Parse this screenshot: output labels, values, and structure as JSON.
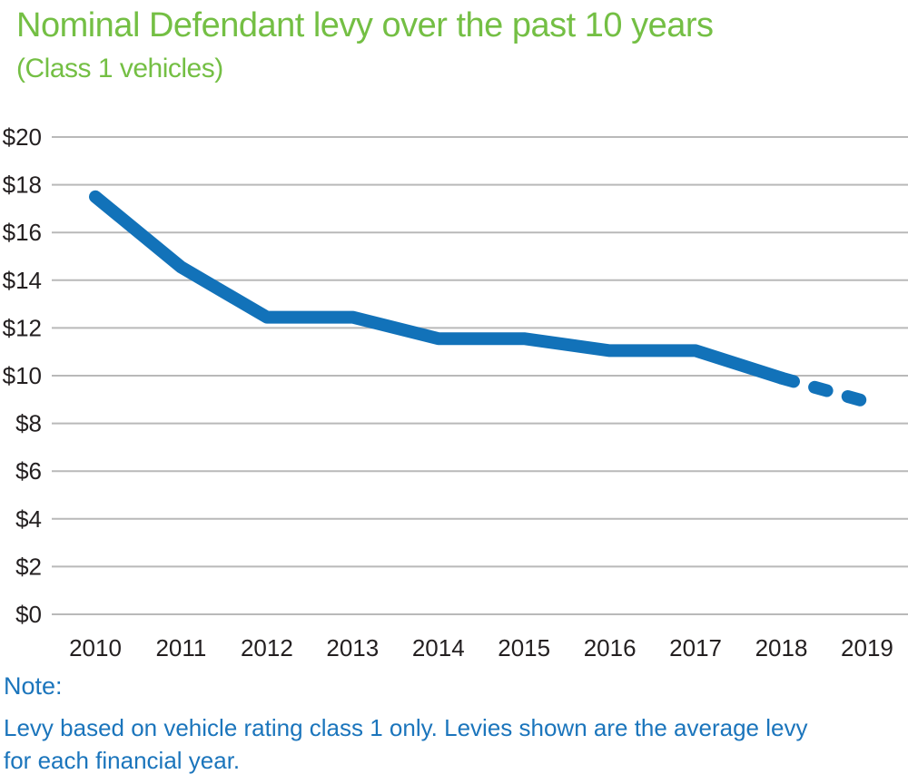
{
  "header": {
    "title": "Nominal Defendant levy over the past 10 years",
    "subtitle": "(Class 1 vehicles)"
  },
  "note": {
    "heading": "Note:",
    "line1": "Levy based on vehicle rating class 1 only. Levies shown are the average levy",
    "line2": "for each financial year."
  },
  "colors": {
    "title_green": "#74bf44",
    "line_blue": "#1272b9",
    "note_blue": "#1b75bc",
    "grid_gray": "#b9b9b9",
    "axis_text": "#231f20"
  },
  "chart_data": {
    "type": "line",
    "title": "Nominal Defendant levy over the past 10 years",
    "subtitle": "(Class 1 vehicles)",
    "xlabel": "",
    "ylabel": "",
    "x": [
      2010,
      2011,
      2012,
      2013,
      2014,
      2015,
      2016,
      2017,
      2018,
      2019
    ],
    "series": [
      {
        "name": "Nominal Defendant levy (Class 1 vehicles)",
        "values": [
          17.5,
          14.55,
          12.45,
          12.45,
          11.55,
          11.55,
          11.05,
          11.05,
          9.9,
          8.9
        ],
        "style_solid_until_x": 2018,
        "style_dashed_from_x": 2018
      }
    ],
    "ylim": [
      0,
      20
    ],
    "ytick_step": 2,
    "ytick_labels": [
      "$0",
      "$2",
      "$4",
      "$6",
      "$8",
      "$10",
      "$12",
      "$14",
      "$16",
      "$18",
      "$20"
    ],
    "grid": "horizontal gridlines on",
    "legend": "none"
  }
}
